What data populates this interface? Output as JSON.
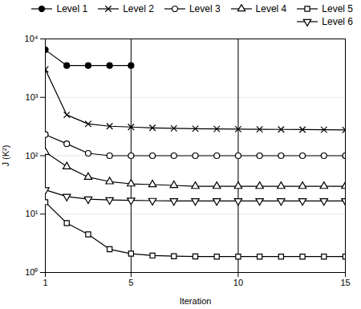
{
  "chart_data": {
    "type": "line",
    "xlabel": "Iteration",
    "ylabel": "J (K²)",
    "x": [
      1,
      2,
      3,
      4,
      5,
      6,
      7,
      8,
      9,
      10,
      11,
      12,
      13,
      14,
      15
    ],
    "series": [
      {
        "name": "Level 1",
        "color": "black",
        "marker": "filled_circle",
        "values": [
          6500,
          3500,
          3500,
          3500,
          3500,
          null,
          null,
          null,
          null,
          null,
          null,
          null,
          null,
          null,
          null
        ]
      },
      {
        "name": "Level 2",
        "color": "black",
        "marker": "x",
        "values": [
          3000,
          500,
          350,
          320,
          310,
          300,
          295,
          290,
          288,
          285,
          283,
          282,
          280,
          278,
          277
        ]
      },
      {
        "name": "Level 3",
        "color": "black",
        "marker": "circle",
        "values": [
          230,
          160,
          110,
          100,
          100,
          100,
          100,
          100,
          100,
          100,
          100,
          100,
          100,
          100,
          100
        ]
      },
      {
        "name": "Level 4",
        "color": "black",
        "marker": "triangle_up",
        "values": [
          115,
          65,
          43,
          36,
          33,
          32,
          31,
          30,
          30,
          30,
          30,
          30,
          30,
          30,
          30
        ]
      },
      {
        "name": "Level 5",
        "color": "black",
        "marker": "square",
        "values": [
          16,
          7,
          4.5,
          2.5,
          2.1,
          1.95,
          1.9,
          1.88,
          1.87,
          1.87,
          1.87,
          1.87,
          1.87,
          1.87,
          1.87
        ]
      },
      {
        "name": "Level 6",
        "color": "black",
        "marker": "triangle_down",
        "values": [
          26,
          20,
          18,
          17.5,
          17.2,
          17.0,
          16.8,
          16.8,
          16.8,
          16.8,
          16.8,
          16.8,
          16.8,
          16.8,
          16.8
        ]
      }
    ],
    "xlim": [
      1,
      15
    ],
    "xticks": [
      1,
      5,
      10,
      15
    ],
    "ylim": [
      1,
      10000
    ],
    "yticks": [
      {
        "value": 1,
        "label": "10⁰"
      },
      {
        "value": 10,
        "label": "10¹"
      },
      {
        "value": 100,
        "label": "10²"
      },
      {
        "value": 1000,
        "label": "10³"
      },
      {
        "value": 10000,
        "label": "10⁴"
      }
    ],
    "log": "y",
    "grid": true,
    "legend": "upper right",
    "vlines": [
      5,
      10
    ]
  }
}
